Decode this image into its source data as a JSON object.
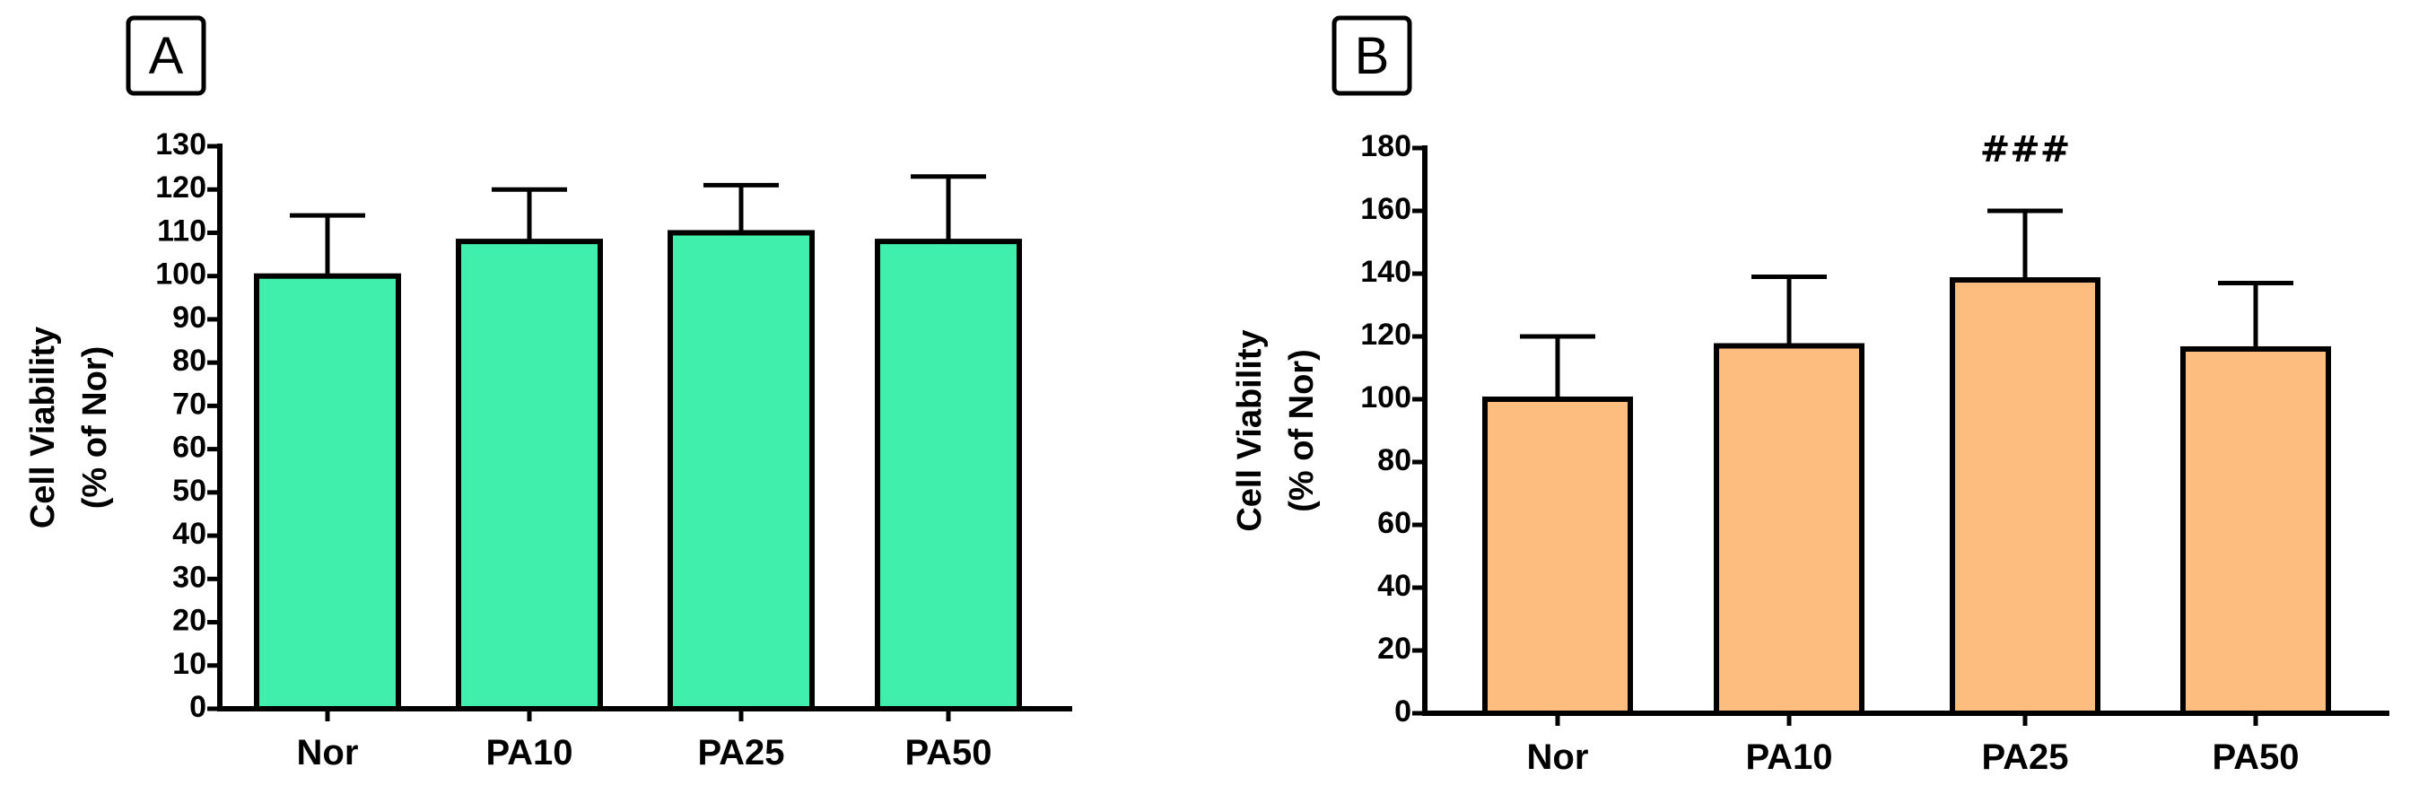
{
  "chart_data": [
    {
      "type": "bar",
      "panel_label": "A",
      "categories": [
        "Nor",
        "PA10",
        "PA25",
        "PA50"
      ],
      "values": [
        100,
        108,
        110,
        108
      ],
      "errors": [
        14,
        12,
        11,
        15
      ],
      "ylabel": [
        "Cell Viability",
        "(% of Nor)"
      ],
      "ylim": [
        0,
        130
      ],
      "yticks": [
        0,
        10,
        20,
        30,
        40,
        50,
        60,
        70,
        80,
        90,
        100,
        110,
        120,
        130
      ],
      "bar_color": "#40EFAC",
      "annotations": [],
      "grid": false,
      "legend": "none"
    },
    {
      "type": "bar",
      "panel_label": "B",
      "categories": [
        "Nor",
        "PA10",
        "PA25",
        "PA50"
      ],
      "values": [
        100,
        117,
        138,
        116
      ],
      "errors": [
        20,
        22,
        22,
        21
      ],
      "ylabel": [
        "Cell Viability",
        "(% of Nor)"
      ],
      "ylim": [
        0,
        180
      ],
      "yticks": [
        0,
        20,
        40,
        60,
        80,
        100,
        120,
        140,
        160,
        180
      ],
      "bar_color": "#FCBD7E",
      "annotations": [
        {
          "category": "PA25",
          "text": "###"
        }
      ],
      "grid": false,
      "legend": "none"
    }
  ]
}
